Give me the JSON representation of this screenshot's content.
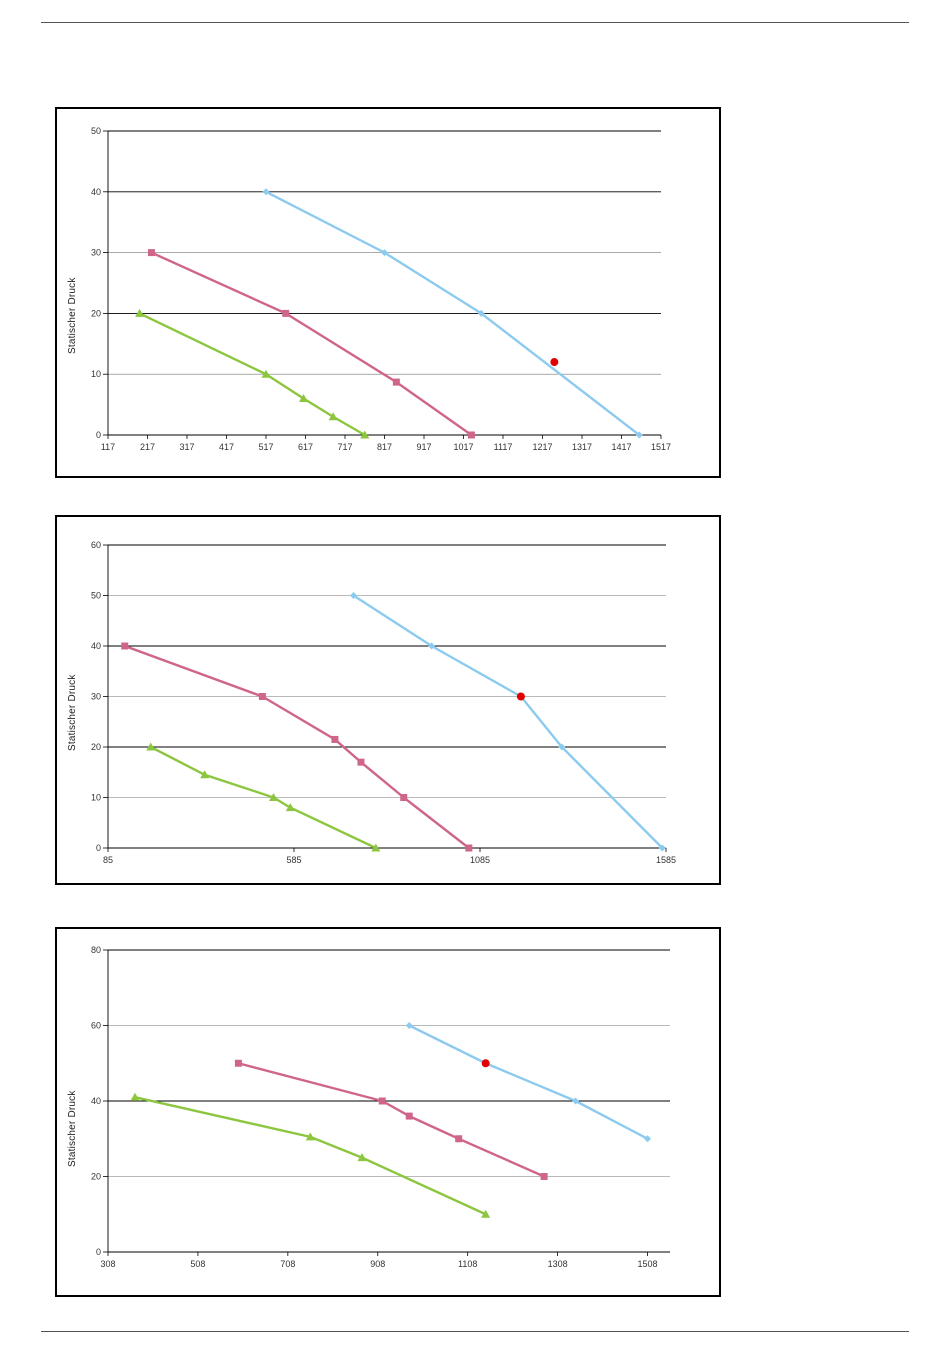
{
  "colors": {
    "blue": "#8ccbef",
    "pink": "#d0658c",
    "green": "#8cc63e",
    "operating_point": "#e00000",
    "grid": "#000000",
    "gridlight": "#777777"
  },
  "chart_data": [
    {
      "type": "line",
      "ylabel": "Statischer Druck",
      "xlim": [
        117,
        1517
      ],
      "ylim": [
        0,
        50
      ],
      "xticks": [
        "117",
        "217",
        "317",
        "417",
        "517",
        "617",
        "717",
        "817",
        "917",
        "1017",
        "1117",
        "1217",
        "1317",
        "1417",
        "1517"
      ],
      "yticks": [
        "0",
        "10",
        "20",
        "30",
        "40",
        "50"
      ],
      "grid": true,
      "series": [
        {
          "color": "blue",
          "marker": "diamond",
          "x": [
            517,
            817,
            1062,
            1462
          ],
          "y": [
            40,
            30,
            20,
            0
          ]
        },
        {
          "color": "pink",
          "marker": "square",
          "x": [
            227,
            567,
            847,
            1037
          ],
          "y": [
            30,
            20,
            8.7,
            0
          ]
        },
        {
          "color": "green",
          "marker": "triangle",
          "x": [
            197,
            517,
            612,
            687,
            767
          ],
          "y": [
            20,
            10,
            6,
            3,
            0
          ]
        }
      ],
      "points": [
        {
          "x": 1247,
          "y": 12,
          "color": "operating_point"
        }
      ]
    },
    {
      "type": "line",
      "ylabel": "Statischer Druck",
      "xlim": [
        85,
        1585
      ],
      "ylim": [
        0,
        60
      ],
      "xticks": [
        "85",
        "585",
        "1085",
        "1585"
      ],
      "yticks": [
        "0",
        "10",
        "20",
        "30",
        "40",
        "50",
        "60"
      ],
      "grid": true,
      "series": [
        {
          "color": "blue",
          "marker": "diamond",
          "x": [
            745,
            955,
            1195,
            1305,
            1575
          ],
          "y": [
            50,
            40,
            30,
            20,
            0
          ]
        },
        {
          "color": "pink",
          "marker": "square",
          "x": [
            130,
            500,
            695,
            765,
            880,
            1055
          ],
          "y": [
            40,
            30,
            21.5,
            17,
            10,
            0
          ]
        },
        {
          "color": "green",
          "marker": "triangle",
          "x": [
            200,
            345,
            530,
            575,
            805
          ],
          "y": [
            20,
            14.5,
            10,
            8,
            0
          ]
        }
      ],
      "points": [
        {
          "x": 1195,
          "y": 30,
          "color": "operating_point"
        }
      ]
    },
    {
      "type": "line",
      "ylabel": "Statischer Druck",
      "xlim": [
        308,
        1558
      ],
      "ylim": [
        0,
        80
      ],
      "xticks": [
        "308",
        "508",
        "708",
        "908",
        "1108",
        "1308",
        "1508"
      ],
      "yticks": [
        "0",
        "20",
        "40",
        "60",
        "80"
      ],
      "grid": true,
      "series": [
        {
          "color": "blue",
          "marker": "diamond",
          "x": [
            978,
            1148,
            1348,
            1508
          ],
          "y": [
            60,
            50,
            40,
            30
          ]
        },
        {
          "color": "pink",
          "marker": "square",
          "x": [
            598,
            918,
            978,
            1088,
            1278
          ],
          "y": [
            50,
            40,
            36,
            30,
            20
          ]
        },
        {
          "color": "green",
          "marker": "triangle",
          "x": [
            368,
            758,
            873,
            1148
          ],
          "y": [
            41,
            30.5,
            25,
            10
          ]
        }
      ],
      "points": [
        {
          "x": 1148,
          "y": 50,
          "color": "operating_point"
        }
      ]
    }
  ]
}
